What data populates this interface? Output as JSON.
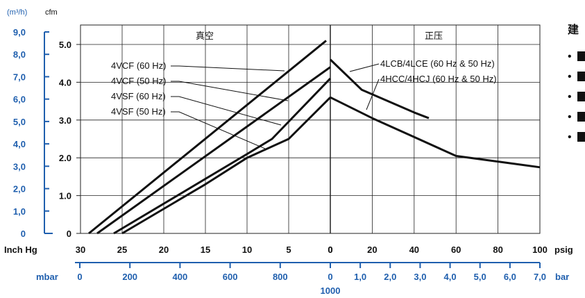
{
  "colors": {
    "axis_blue": "#1f5fae",
    "ink": "#111111",
    "grid": "#222222"
  },
  "chart_data": {
    "type": "line",
    "sections": {
      "vacuum": "真空",
      "pressure": "正压"
    },
    "left_axis": {
      "unit": "(m³/h)",
      "ticks": [
        "9,0",
        "8,0",
        "7,0",
        "6,0",
        "5,0",
        "4,0",
        "3,0",
        "2,0",
        "1,0",
        "0"
      ],
      "ylim": [
        0,
        9
      ]
    },
    "y_axis": {
      "unit": "cfm",
      "ticks": [
        "5.0",
        "4.0",
        "3.0",
        "2.0",
        "1.0",
        "0"
      ],
      "ylim": [
        0,
        5
      ]
    },
    "x_vacuum_inhg": {
      "label": "Inch Hg",
      "ticks": [
        "30",
        "25",
        "20",
        "15",
        "10",
        "5",
        "0"
      ]
    },
    "x_pressure_psig": {
      "label": "psig",
      "ticks": [
        "20",
        "40",
        "60",
        "80",
        "100"
      ]
    },
    "x_vacuum_mbar": {
      "label": "mbar",
      "ticks": [
        "0",
        "200",
        "400",
        "600",
        "800"
      ],
      "extra": "1000"
    },
    "x_pressure_bar": {
      "label": "bar",
      "ticks": [
        "0",
        "1,0",
        "2,0",
        "3,0",
        "4,0",
        "5,0",
        "6,0",
        "7,0"
      ]
    },
    "vacuum_series": [
      {
        "name": "4VCF (60 Hz)",
        "points": [
          [
            29,
            0
          ],
          [
            0.5,
            5.1
          ]
        ]
      },
      {
        "name": "4VCF (50 Hz)",
        "points": [
          [
            28,
            0
          ],
          [
            0,
            4.4
          ]
        ]
      },
      {
        "name": "4VSF (60 Hz)",
        "points": [
          [
            26,
            0
          ],
          [
            10,
            2.1
          ],
          [
            7,
            2.5
          ],
          [
            0,
            4.1
          ]
        ]
      },
      {
        "name": "4VSF (50 Hz)",
        "points": [
          [
            25,
            0
          ],
          [
            15,
            1.3
          ],
          [
            10,
            2.0
          ],
          [
            5,
            2.5
          ],
          [
            0,
            3.6
          ]
        ]
      }
    ],
    "pressure_series": [
      {
        "name": "4LCB/4LCE (60 Hz & 50 Hz)",
        "points": [
          [
            0,
            4.6
          ],
          [
            15,
            3.8
          ],
          [
            40,
            3.2
          ],
          [
            47,
            3.05
          ]
        ]
      },
      {
        "name": "4HCC/4HCJ (60 Hz & 50 Hz)",
        "points": [
          [
            0,
            3.6
          ],
          [
            20,
            3.05
          ],
          [
            40,
            2.55
          ],
          [
            60,
            2.05
          ],
          [
            80,
            1.9
          ],
          [
            100,
            1.75
          ]
        ]
      }
    ],
    "annotation": "0"
  },
  "side_panel": {
    "heading": "建",
    "bullets": [
      "•",
      "•",
      "•",
      "•",
      "•"
    ]
  }
}
